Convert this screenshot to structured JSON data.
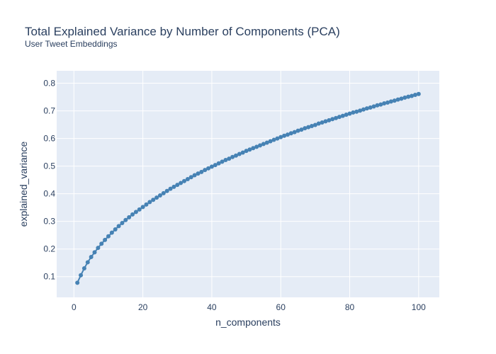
{
  "chart_data": {
    "type": "line",
    "title": "Total Explained Variance by Number of Components (PCA)",
    "subtitle": "User Tweet Embeddings",
    "xlabel": "n_components",
    "ylabel": "explained_variance",
    "xlim": [
      -5,
      106
    ],
    "ylim": [
      0.025,
      0.845
    ],
    "x_ticks": [
      0,
      20,
      40,
      60,
      80,
      100
    ],
    "y_ticks": [
      0.1,
      0.2,
      0.3,
      0.4,
      0.5,
      0.6,
      0.7,
      0.8
    ],
    "x_tick_labels": [
      "0",
      "20",
      "40",
      "60",
      "80",
      "100"
    ],
    "y_tick_labels": [
      "0.1",
      "0.2",
      "0.3",
      "0.4",
      "0.5",
      "0.6",
      "0.7",
      "0.8"
    ],
    "grid": true,
    "legend": "none",
    "colors": {
      "plot_background": "#e5ecf6",
      "grid": "#ffffff",
      "series": "#4682b4",
      "text": "#2a3f5f"
    },
    "series": [
      {
        "mode": "lines+markers",
        "x": [
          1,
          2,
          3,
          4,
          5,
          6,
          7,
          8,
          9,
          10,
          11,
          12,
          13,
          14,
          15,
          16,
          17,
          18,
          19,
          20,
          21,
          22,
          23,
          24,
          25,
          26,
          27,
          28,
          29,
          30,
          31,
          32,
          33,
          34,
          35,
          36,
          37,
          38,
          39,
          40,
          41,
          42,
          43,
          44,
          45,
          46,
          47,
          48,
          49,
          50,
          51,
          52,
          53,
          54,
          55,
          56,
          57,
          58,
          59,
          60,
          61,
          62,
          63,
          64,
          65,
          66,
          67,
          68,
          69,
          70,
          71,
          72,
          73,
          74,
          75,
          76,
          77,
          78,
          79,
          80,
          81,
          82,
          83,
          84,
          85,
          86,
          87,
          88,
          89,
          90,
          91,
          92,
          93,
          94,
          95,
          96,
          97,
          98,
          99,
          100
        ],
        "values": [
          0.078,
          0.105,
          0.13,
          0.152,
          0.171,
          0.188,
          0.204,
          0.219,
          0.233,
          0.246,
          0.259,
          0.271,
          0.283,
          0.294,
          0.305,
          0.315,
          0.325,
          0.334,
          0.343,
          0.352,
          0.361,
          0.37,
          0.378,
          0.386,
          0.394,
          0.402,
          0.41,
          0.418,
          0.425,
          0.432,
          0.439,
          0.446,
          0.453,
          0.46,
          0.467,
          0.473,
          0.479,
          0.486,
          0.492,
          0.498,
          0.504,
          0.51,
          0.516,
          0.522,
          0.527,
          0.533,
          0.538,
          0.544,
          0.549,
          0.555,
          0.56,
          0.565,
          0.57,
          0.575,
          0.58,
          0.585,
          0.59,
          0.595,
          0.6,
          0.605,
          0.61,
          0.614,
          0.619,
          0.623,
          0.628,
          0.632,
          0.637,
          0.641,
          0.645,
          0.649,
          0.654,
          0.658,
          0.662,
          0.666,
          0.67,
          0.674,
          0.678,
          0.682,
          0.686,
          0.69,
          0.694,
          0.697,
          0.701,
          0.705,
          0.709,
          0.712,
          0.716,
          0.72,
          0.723,
          0.727,
          0.73,
          0.734,
          0.737,
          0.741,
          0.744,
          0.748,
          0.751,
          0.754,
          0.758,
          0.761
        ]
      }
    ]
  }
}
